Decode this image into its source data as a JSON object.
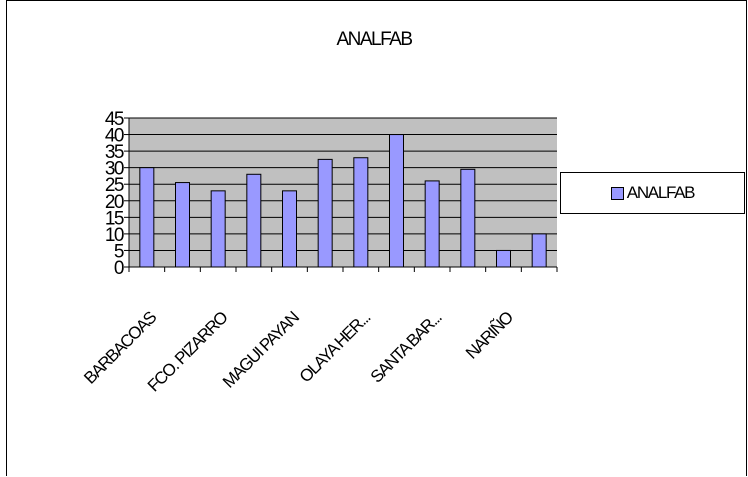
{
  "chart_data": {
    "type": "bar",
    "title": "ANALFAB",
    "xlabel": "",
    "ylabel": "",
    "categories": [
      "BARBACOAS",
      "",
      "FCO. PIZARRO",
      "",
      "MAGUI PAYAN",
      "",
      "OLAYA HER...",
      "",
      "SANTA BAR...",
      "",
      "NARIÑO",
      ""
    ],
    "series": [
      {
        "name": "ANALFAB",
        "values": [
          30,
          25.5,
          23,
          28,
          23,
          32.5,
          33,
          40,
          26,
          29.5,
          5,
          10
        ]
      }
    ],
    "yticks": [
      0,
      5,
      10,
      15,
      20,
      25,
      30,
      35,
      40,
      45
    ],
    "ylim": [
      0,
      45
    ],
    "grid": true,
    "legend_position": "right",
    "colors": {
      "bar": "#9999ff",
      "plot_bg": "#c0c0c0",
      "bar_border": "#000000"
    }
  }
}
